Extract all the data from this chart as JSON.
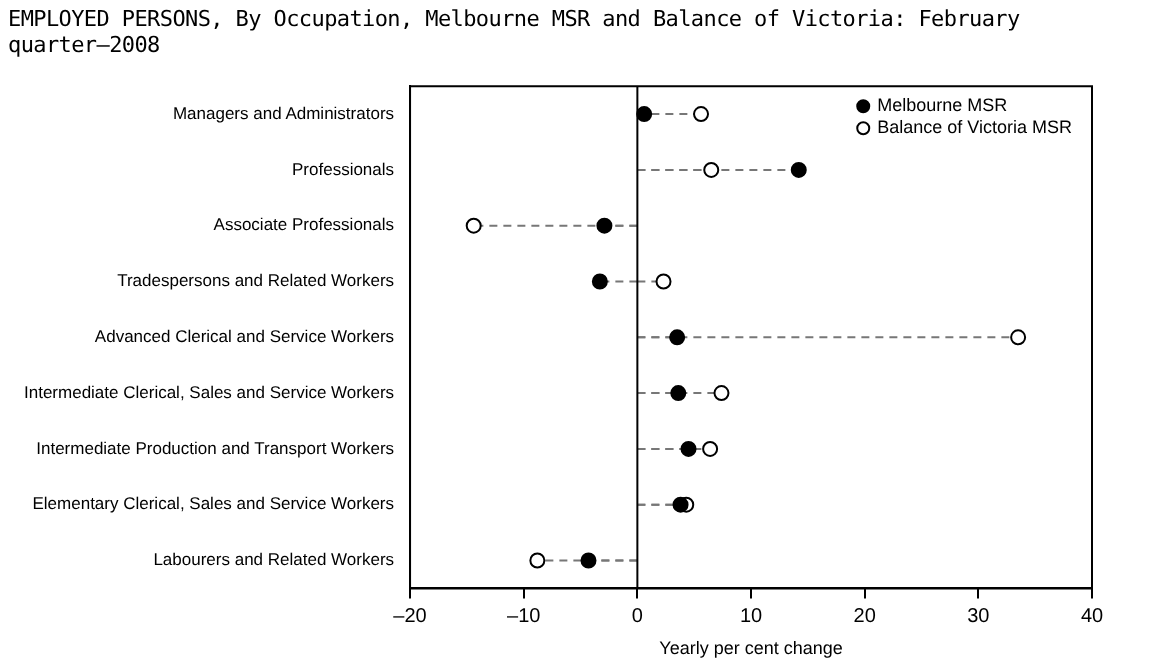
{
  "chart_data": {
    "type": "lollipop",
    "orientation": "horizontal",
    "title": "EMPLOYED PERSONS, By Occupation, Melbourne MSR and Balance of Victoria: February quarter—2008",
    "xlabel": "Yearly per cent change",
    "categories": [
      "Managers and Administrators",
      "Professionals",
      "Associate Professionals",
      "Tradespersons and Related Workers",
      "Advanced Clerical and Service Workers",
      "Intermediate Clerical, Sales and Service Workers",
      "Intermediate Production and Transport Workers",
      "Elementary Clerical, Sales and Service Workers",
      "Labourers and Related Workers"
    ],
    "series": [
      {
        "name": "Melbourne MSR",
        "color": "#000000",
        "values": [
          0.6,
          14.2,
          -2.9,
          -3.3,
          3.5,
          3.6,
          4.5,
          3.8,
          -4.3
        ]
      },
      {
        "name": "Balance of Victoria MSR",
        "color": "#000000",
        "values": [
          5.6,
          6.5,
          -14.4,
          2.3,
          33.5,
          7.4,
          6.4,
          4.3,
          -8.8
        ]
      }
    ],
    "xlim": [
      -20,
      40
    ],
    "xticks": [
      {
        "value": -20,
        "label": "–20"
      },
      {
        "value": -10,
        "label": "–10"
      },
      0,
      10,
      20,
      30,
      40
    ],
    "ref_lines": [
      {
        "axis": "x",
        "value": 0,
        "color": "#000000"
      }
    ],
    "grid": false,
    "legend": "top right",
    "marker": "circle",
    "line_style": "dashed"
  }
}
